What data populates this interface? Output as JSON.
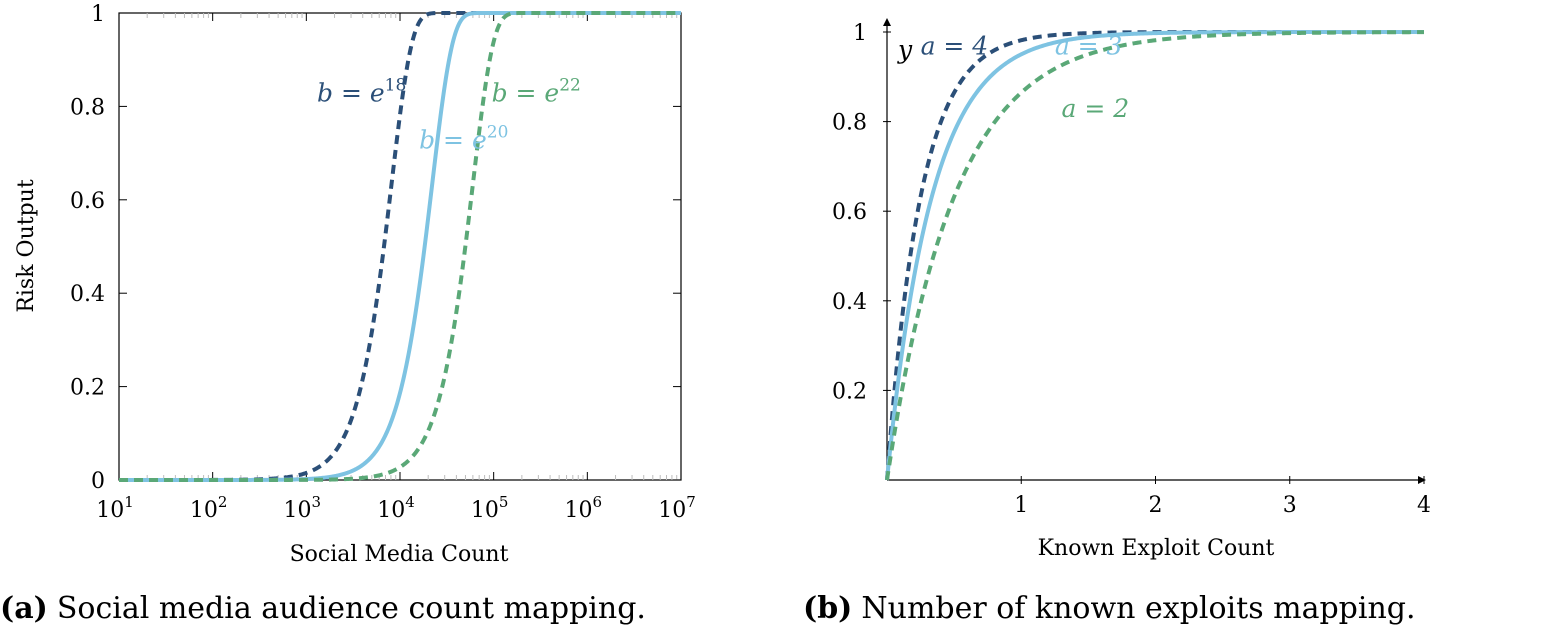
{
  "colors": {
    "dark": "#2b4f78",
    "light": "#7ec3e2",
    "green": "#5aa877"
  },
  "captions": {
    "a_tag": "(a)",
    "a_text": "Social media audience count mapping.",
    "b_tag": "(b)",
    "b_text": "Number of known exploits mapping."
  },
  "chart_data": [
    {
      "type": "line",
      "xscale": "log",
      "title": "",
      "xlabel": "Social Media Count",
      "ylabel": "Risk Output",
      "xlim": [
        10,
        10000000
      ],
      "ylim": [
        0,
        1
      ],
      "x_ticks": [
        {
          "value": 10,
          "base": "10",
          "exp": "1"
        },
        {
          "value": 100,
          "base": "10",
          "exp": "2"
        },
        {
          "value": 1000,
          "base": "10",
          "exp": "3"
        },
        {
          "value": 10000,
          "base": "10",
          "exp": "4"
        },
        {
          "value": 100000,
          "base": "10",
          "exp": "5"
        },
        {
          "value": 1000000,
          "base": "10",
          "exp": "6"
        },
        {
          "value": 10000000,
          "base": "10",
          "exp": "7"
        }
      ],
      "y_ticks": [
        {
          "value": 0,
          "label": "0"
        },
        {
          "value": 0.2,
          "label": "0.2"
        },
        {
          "value": 0.4,
          "label": "0.4"
        },
        {
          "value": 0.6,
          "label": "0.6"
        },
        {
          "value": 0.8,
          "label": "0.8"
        },
        {
          "value": 1,
          "label": "1"
        }
      ],
      "series": [
        {
          "name": "b = e^18",
          "b_exponent": 18,
          "color_key": "dark",
          "dashed": true,
          "label": {
            "prefix": "b = e",
            "exp": "18"
          },
          "label_at": {
            "x": 1300,
            "y": 0.81
          }
        },
        {
          "name": "b = e^20",
          "b_exponent": 20,
          "color_key": "light",
          "dashed": false,
          "label": {
            "prefix": "b = e",
            "exp": "20"
          },
          "label_at": {
            "x": 16000,
            "y": 0.71
          }
        },
        {
          "name": "b = e^22",
          "b_exponent": 22,
          "color_key": "green",
          "dashed": true,
          "label": {
            "prefix": "b = e",
            "exp": "22"
          },
          "label_at": {
            "x": 95000,
            "y": 0.81
          }
        }
      ]
    },
    {
      "type": "line",
      "title": "",
      "xlabel": "Known Exploit Count",
      "ylabel": "y",
      "xlim": [
        0,
        4
      ],
      "ylim": [
        0,
        1
      ],
      "x_ticks": [
        {
          "value": 1,
          "label": "1"
        },
        {
          "value": 2,
          "label": "2"
        },
        {
          "value": 3,
          "label": "3"
        },
        {
          "value": 4,
          "label": "4"
        }
      ],
      "y_ticks": [
        {
          "value": 0.2,
          "label": "0.2"
        },
        {
          "value": 0.4,
          "label": "0.4"
        },
        {
          "value": 0.6,
          "label": "0.6"
        },
        {
          "value": 0.8,
          "label": "0.8"
        },
        {
          "value": 1,
          "label": "1"
        }
      ],
      "series": [
        {
          "name": "a = 4",
          "a": 4,
          "color_key": "dark",
          "dashed": true,
          "label": {
            "text": "a = 4"
          },
          "label_at": {
            "x": 0.25,
            "y": 0.95
          }
        },
        {
          "name": "a = 3",
          "a": 3,
          "color_key": "light",
          "dashed": false,
          "label": {
            "text": "a = 3"
          },
          "label_at": {
            "x": 1.25,
            "y": 0.95
          }
        },
        {
          "name": "a = 2",
          "a": 2,
          "color_key": "green",
          "dashed": true,
          "label": {
            "text": "a = 2"
          },
          "label_at": {
            "x": 1.3,
            "y": 0.81
          }
        }
      ]
    }
  ]
}
